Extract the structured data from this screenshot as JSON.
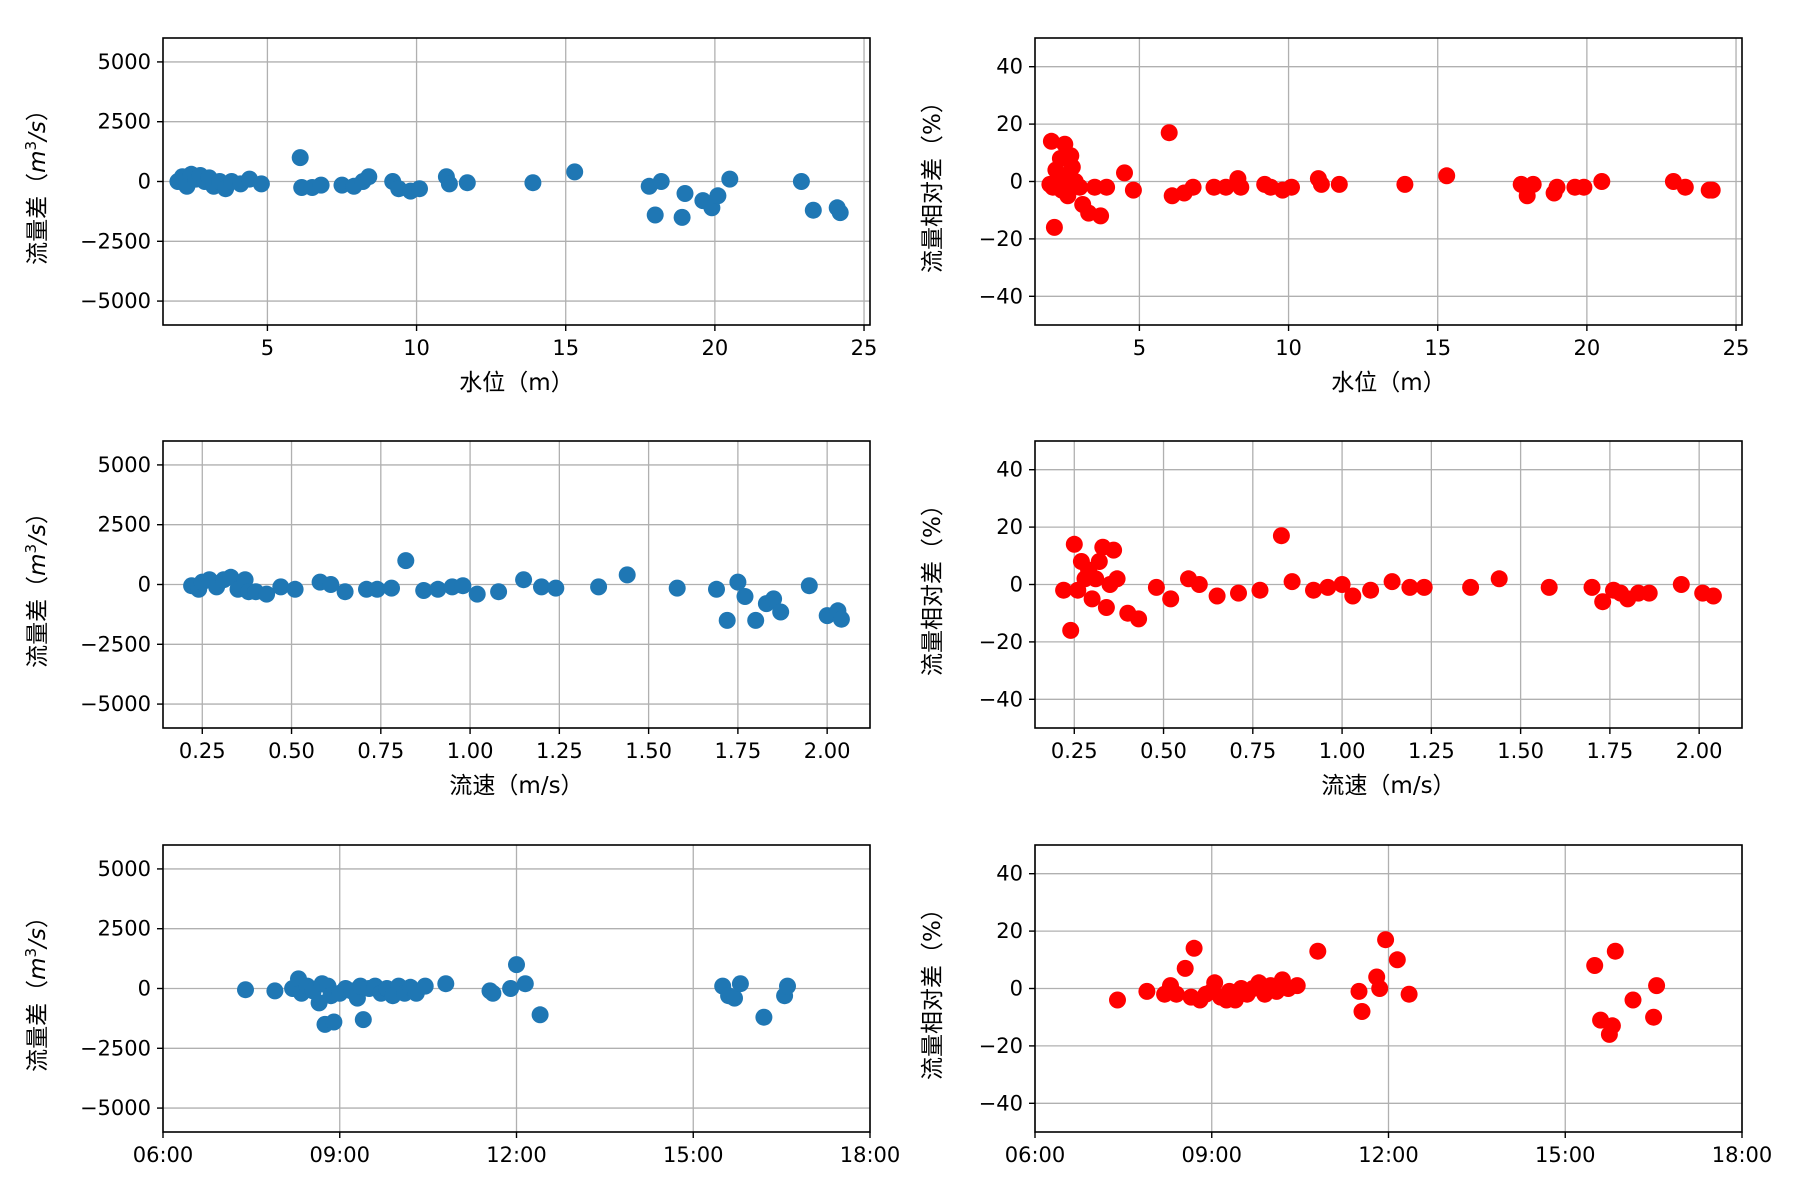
{
  "colors": {
    "blue": "#1f77b4",
    "red": "#ff0000",
    "grid": "#b0b0b0"
  },
  "chart_data": [
    {
      "id": "level-diff",
      "type": "scatter",
      "color": "#1f77b4",
      "xlabel": "水位（m）",
      "ylabel": "流量差",
      "ylabel_unit": {
        "base": "m",
        "sup": "3",
        "suffix": "/s"
      },
      "xlim": [
        1.5,
        25.2
      ],
      "ylim": [
        -6000,
        6000
      ],
      "xticks": [
        5,
        10,
        15,
        20,
        25
      ],
      "xtick_labels": [
        "5",
        "10",
        "15",
        "20",
        "25"
      ],
      "yticks": [
        -5000,
        -2500,
        0,
        2500,
        5000
      ],
      "ytick_labels": [
        "−5000",
        "−2500",
        "0",
        "2500",
        "5000"
      ],
      "x": [
        2.0,
        2.15,
        2.3,
        2.45,
        2.6,
        2.75,
        2.9,
        3.05,
        3.2,
        3.4,
        3.6,
        3.8,
        4.1,
        4.4,
        4.8,
        6.1,
        6.15,
        6.5,
        6.8,
        7.5,
        7.9,
        8.2,
        8.4,
        9.2,
        9.4,
        9.8,
        10.1,
        11.0,
        11.1,
        11.7,
        13.9,
        15.3,
        17.8,
        18.0,
        18.2,
        18.9,
        19.0,
        19.6,
        19.9,
        20.1,
        20.5,
        22.9,
        23.3,
        24.1,
        24.2
      ],
      "y": [
        0,
        200,
        -200,
        300,
        100,
        250,
        0,
        150,
        -200,
        0,
        -300,
        0,
        -100,
        100,
        -100,
        1000,
        -250,
        -250,
        -150,
        -150,
        -200,
        0,
        200,
        0,
        -300,
        -400,
        -300,
        200,
        -100,
        -50,
        -50,
        400,
        -200,
        -1400,
        0,
        -1500,
        -500,
        -800,
        -1100,
        -600,
        100,
        0,
        -1200,
        -1100,
        -1300
      ]
    },
    {
      "id": "level-rel",
      "type": "scatter",
      "color": "#ff0000",
      "xlabel": "水位（m）",
      "ylabel": "流量相对差（%）",
      "xlim": [
        1.5,
        25.2
      ],
      "ylim": [
        -50,
        50
      ],
      "xticks": [
        5,
        10,
        15,
        20,
        25
      ],
      "xtick_labels": [
        "5",
        "10",
        "15",
        "20",
        "25"
      ],
      "yticks": [
        -40,
        -20,
        0,
        20,
        40
      ],
      "ytick_labels": [
        "−40",
        "−20",
        "0",
        "20",
        "40"
      ],
      "x": [
        2.0,
        2.05,
        2.1,
        2.15,
        2.2,
        2.3,
        2.35,
        2.4,
        2.5,
        2.55,
        2.6,
        2.7,
        2.75,
        2.85,
        3.0,
        3.1,
        3.3,
        3.5,
        3.7,
        3.9,
        4.5,
        4.8,
        6.0,
        6.1,
        6.5,
        6.8,
        7.5,
        7.9,
        8.3,
        8.4,
        9.2,
        9.4,
        9.8,
        10.1,
        11.0,
        11.1,
        11.7,
        13.9,
        15.3,
        17.8,
        18.0,
        18.2,
        18.9,
        19.0,
        19.6,
        19.9,
        20.5,
        22.9,
        23.3,
        24.1,
        24.2
      ],
      "y": [
        -1,
        14,
        -2,
        -16,
        4,
        0,
        8,
        -3,
        13,
        2,
        -5,
        9,
        5,
        0,
        -2,
        -8,
        -11,
        -2,
        -12,
        -2,
        3,
        -3,
        17,
        -5,
        -4,
        -2,
        -2,
        -2,
        1,
        -2,
        -1,
        -2,
        -3,
        -2,
        1,
        -1,
        -1,
        -1,
        2,
        -1,
        -5,
        -1,
        -4,
        -2,
        -2,
        -2,
        0,
        0,
        -2,
        -3,
        -3
      ]
    },
    {
      "id": "speed-diff",
      "type": "scatter",
      "color": "#1f77b4",
      "xlabel": "流速（m/s）",
      "ylabel": "流量差",
      "ylabel_unit": {
        "base": "m",
        "sup": "3",
        "suffix": "/s"
      },
      "xlim": [
        0.14,
        2.12
      ],
      "ylim": [
        -6000,
        6000
      ],
      "xticks": [
        0.25,
        0.5,
        0.75,
        1.0,
        1.25,
        1.5,
        1.75,
        2.0
      ],
      "xtick_labels": [
        "0.25",
        "0.50",
        "0.75",
        "1.00",
        "1.25",
        "1.50",
        "1.75",
        "2.00"
      ],
      "yticks": [
        -5000,
        -2500,
        0,
        2500,
        5000
      ],
      "ytick_labels": [
        "−5000",
        "−2500",
        "0",
        "2500",
        "5000"
      ],
      "x": [
        0.22,
        0.24,
        0.25,
        0.27,
        0.29,
        0.31,
        0.33,
        0.35,
        0.37,
        0.38,
        0.4,
        0.43,
        0.47,
        0.51,
        0.58,
        0.61,
        0.65,
        0.71,
        0.74,
        0.78,
        0.82,
        0.87,
        0.91,
        0.95,
        0.98,
        1.02,
        1.08,
        1.15,
        1.2,
        1.24,
        1.36,
        1.44,
        1.58,
        1.69,
        1.72,
        1.75,
        1.77,
        1.8,
        1.83,
        1.85,
        1.87,
        1.95,
        2.0,
        2.03,
        2.04
      ],
      "y": [
        -50,
        -200,
        100,
        200,
        -100,
        200,
        300,
        -200,
        200,
        -300,
        -300,
        -400,
        -100,
        -200,
        100,
        0,
        -300,
        -200,
        -200,
        -150,
        1000,
        -250,
        -200,
        -100,
        -50,
        -400,
        -300,
        200,
        -100,
        -150,
        -100,
        400,
        -150,
        -200,
        -1500,
        100,
        -500,
        -1500,
        -800,
        -600,
        -1150,
        -50,
        -1300,
        -1100,
        -1450
      ]
    },
    {
      "id": "speed-rel",
      "type": "scatter",
      "color": "#ff0000",
      "xlabel": "流速（m/s）",
      "ylabel": "流量相对差（%）",
      "xlim": [
        0.14,
        2.12
      ],
      "ylim": [
        -50,
        50
      ],
      "xticks": [
        0.25,
        0.5,
        0.75,
        1.0,
        1.25,
        1.5,
        1.75,
        2.0
      ],
      "xtick_labels": [
        "0.25",
        "0.50",
        "0.75",
        "1.00",
        "1.25",
        "1.50",
        "1.75",
        "2.00"
      ],
      "yticks": [
        -40,
        -20,
        0,
        20,
        40
      ],
      "ytick_labels": [
        "−40",
        "−20",
        "0",
        "20",
        "40"
      ],
      "x": [
        0.22,
        0.24,
        0.25,
        0.26,
        0.27,
        0.28,
        0.29,
        0.3,
        0.31,
        0.32,
        0.33,
        0.34,
        0.35,
        0.36,
        0.37,
        0.4,
        0.43,
        0.48,
        0.52,
        0.57,
        0.6,
        0.65,
        0.71,
        0.77,
        0.83,
        0.86,
        0.92,
        0.96,
        1.0,
        1.03,
        1.08,
        1.14,
        1.19,
        1.23,
        1.36,
        1.44,
        1.58,
        1.7,
        1.73,
        1.76,
        1.78,
        1.8,
        1.83,
        1.86,
        1.95,
        2.01,
        2.04
      ],
      "y": [
        -2,
        -16,
        14,
        -2,
        8,
        2,
        5,
        -5,
        2,
        8,
        13,
        -8,
        0,
        12,
        2,
        -10,
        -12,
        -1,
        -5,
        2,
        0,
        -4,
        -3,
        -2,
        17,
        1,
        -2,
        -1,
        0,
        -4,
        -2,
        1,
        -1,
        -1,
        -1,
        2,
        -1,
        -1,
        -6,
        -2,
        -3,
        -5,
        -3,
        -3,
        0,
        -3,
        -4
      ]
    },
    {
      "id": "time-diff",
      "type": "scatter",
      "color": "#1f77b4",
      "xlabel": "",
      "ylabel": "流量差",
      "ylabel_unit": {
        "base": "m",
        "sup": "3",
        "suffix": "/s"
      },
      "xlim": [
        6,
        18
      ],
      "ylim": [
        -6000,
        6000
      ],
      "xticks": [
        6,
        9,
        12,
        15,
        18
      ],
      "xtick_labels": [
        "06:00",
        "09:00",
        "12:00",
        "15:00",
        "18:00"
      ],
      "yticks": [
        -5000,
        -2500,
        0,
        2500,
        5000
      ],
      "ytick_labels": [
        "−5000",
        "−2500",
        "0",
        "2500",
        "5000"
      ],
      "x": [
        7.4,
        7.9,
        8.2,
        8.3,
        8.35,
        8.45,
        8.55,
        8.65,
        8.7,
        8.75,
        8.8,
        8.85,
        8.9,
        9.0,
        9.1,
        9.2,
        9.3,
        9.35,
        9.4,
        9.5,
        9.6,
        9.7,
        9.8,
        9.9,
        10.0,
        10.1,
        10.2,
        10.3,
        10.45,
        10.8,
        11.55,
        11.6,
        11.9,
        12.0,
        12.15,
        12.4,
        15.5,
        15.6,
        15.7,
        15.8,
        16.2,
        16.55,
        16.6
      ],
      "y": [
        -50,
        -100,
        0,
        400,
        -200,
        100,
        -100,
        -600,
        200,
        -1500,
        100,
        -300,
        -1400,
        -200,
        0,
        -100,
        -400,
        100,
        -1300,
        0,
        100,
        -200,
        0,
        -300,
        100,
        -200,
        50,
        -200,
        100,
        200,
        -100,
        -200,
        0,
        1000,
        200,
        -1100,
        100,
        -300,
        -400,
        200,
        -1200,
        -300,
        100
      ]
    },
    {
      "id": "time-rel",
      "type": "scatter",
      "color": "#ff0000",
      "xlabel": "",
      "ylabel": "流量相对差（%）",
      "xlim": [
        6,
        18
      ],
      "ylim": [
        -50,
        50
      ],
      "xticks": [
        6,
        9,
        12,
        15,
        18
      ],
      "xtick_labels": [
        "06:00",
        "09:00",
        "12:00",
        "15:00",
        "18:00"
      ],
      "yticks": [
        -40,
        -20,
        0,
        20,
        40
      ],
      "ytick_labels": [
        "−40",
        "−20",
        "0",
        "20",
        "40"
      ],
      "x": [
        7.4,
        7.9,
        8.2,
        8.3,
        8.4,
        8.55,
        8.65,
        8.7,
        8.8,
        8.9,
        9.0,
        9.05,
        9.15,
        9.25,
        9.3,
        9.4,
        9.5,
        9.6,
        9.7,
        9.8,
        9.9,
        10.0,
        10.1,
        10.2,
        10.3,
        10.45,
        10.8,
        11.5,
        11.55,
        11.8,
        11.85,
        11.95,
        12.15,
        12.35,
        15.5,
        15.6,
        15.75,
        15.8,
        15.85,
        16.15,
        16.5,
        16.55
      ],
      "y": [
        -4,
        -1,
        -2,
        1,
        -2,
        7,
        -3,
        14,
        -4,
        -2,
        -1,
        2,
        -3,
        -4,
        -1,
        -4,
        0,
        -2,
        0,
        2,
        -2,
        1,
        -1,
        3,
        0,
        1,
        13,
        -1,
        -8,
        4,
        0,
        17,
        10,
        -2,
        8,
        -11,
        -16,
        -13,
        13,
        -4,
        -10,
        1
      ]
    }
  ]
}
